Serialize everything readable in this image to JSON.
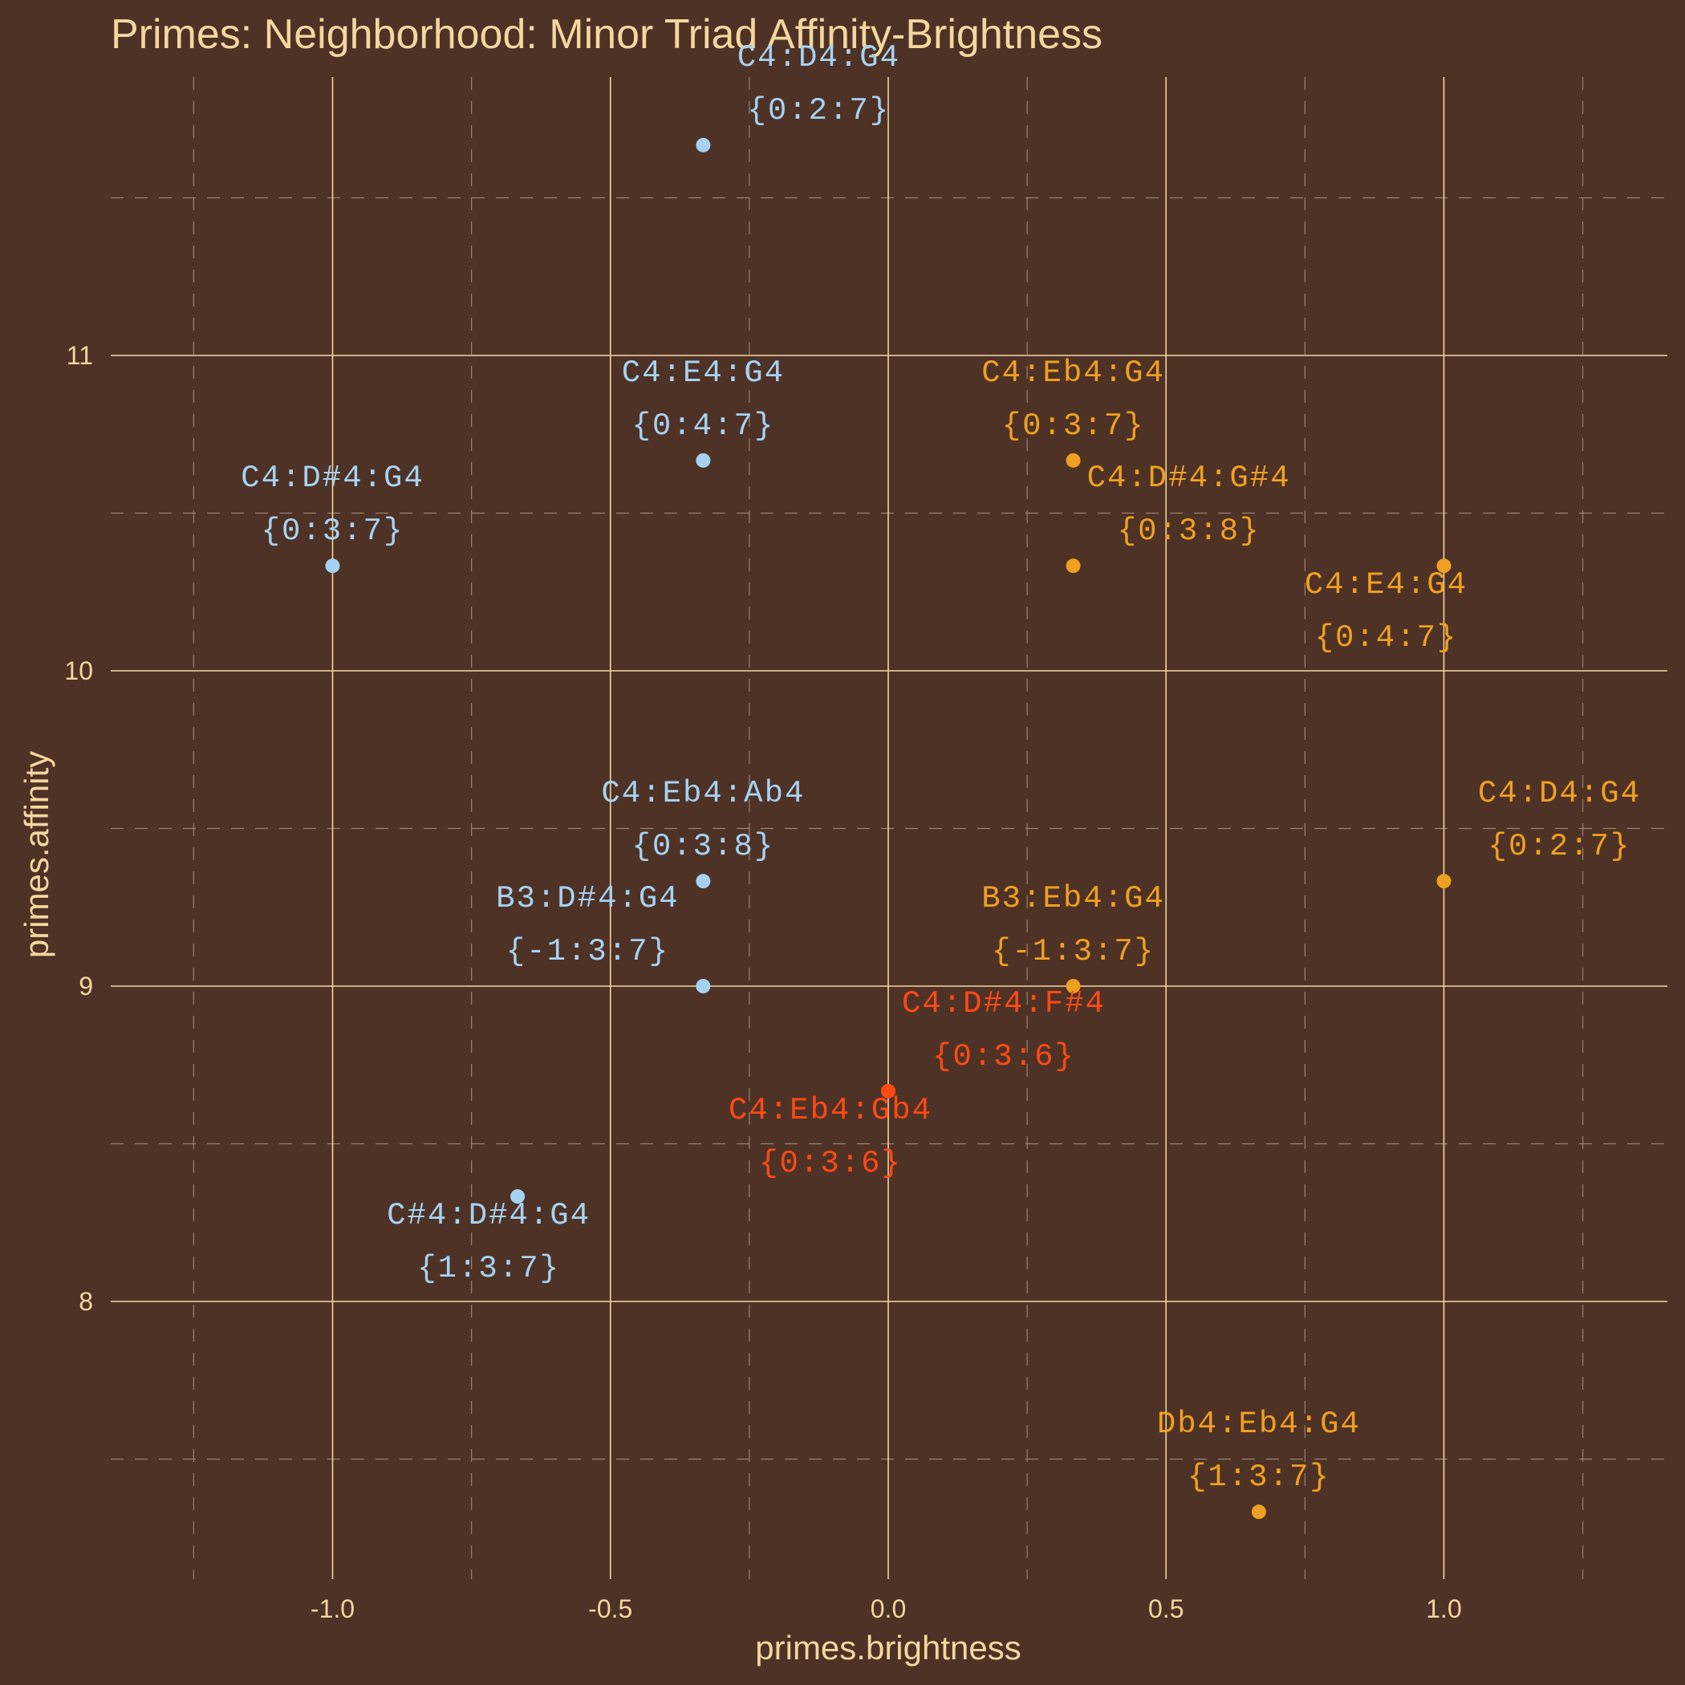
{
  "colors": {
    "background": "#4e3226",
    "text": "#f3d79e",
    "gridMajor": "#f3d79e",
    "gridMinor": "#9a8270",
    "blue": "#a6d2f2",
    "orange": "#f0a020",
    "red": "#ff4a14"
  },
  "chart_data": {
    "type": "scatter",
    "title": "Primes: Neighborhood: Minor Triad Affinity-Brightness",
    "xlabel": "primes.brightness",
    "ylabel": "primes.affinity",
    "xlim": [
      -1.25,
      1.25
    ],
    "ylim": [
      7.2,
      11.9
    ],
    "xticks": [
      -1.0,
      -0.5,
      0.0,
      0.5,
      1.0
    ],
    "xtick_labels": [
      "-1.0",
      "-0.5",
      "0.0",
      "0.5",
      "1.0"
    ],
    "yticks": [
      8,
      9,
      10,
      11
    ],
    "ytick_labels": [
      "8",
      "9",
      "10",
      "11"
    ],
    "xminor": [
      -1.25,
      -0.75,
      -0.25,
      0.25,
      0.75,
      1.25
    ],
    "yminor": [
      7.5,
      8.5,
      9.5,
      10.5,
      11.5
    ],
    "grid": true,
    "legend": "none",
    "points": [
      {
        "x": -0.333,
        "y": 11.667,
        "color": "blue",
        "name": "C4:D4:G4",
        "set": "{0:2:7}",
        "pos": "above-right"
      },
      {
        "x": -0.333,
        "y": 10.667,
        "color": "blue",
        "name": "C4:E4:G4",
        "set": "{0:4:7}",
        "pos": "above"
      },
      {
        "x": -1.0,
        "y": 10.333,
        "color": "blue",
        "name": "C4:D#4:G4",
        "set": "{0:3:7}",
        "pos": "above"
      },
      {
        "x": -0.333,
        "y": 9.333,
        "color": "blue",
        "name": "C4:Eb4:Ab4",
        "set": "{0:3:8}",
        "pos": "above"
      },
      {
        "x": -0.333,
        "y": 9.0,
        "color": "blue",
        "name": "B3:D#4:G4",
        "set": "{-1:3:7}",
        "pos": "above-left"
      },
      {
        "x": -0.667,
        "y": 8.333,
        "color": "blue",
        "name": "C#4:D#4:G4",
        "set": "{1:3:7}",
        "pos": "below"
      },
      {
        "x": 0.333,
        "y": 10.667,
        "color": "orange",
        "name": "C4:Eb4:G4",
        "set": "{0:3:7}",
        "pos": "above"
      },
      {
        "x": 0.333,
        "y": 10.333,
        "color": "orange",
        "name": "C4:D#4:G#4",
        "set": "{0:3:8}",
        "pos": "above-right"
      },
      {
        "x": 1.0,
        "y": 10.333,
        "color": "orange",
        "name": "C4:E4:G4",
        "set": "{0:4:7}",
        "pos": "below-left"
      },
      {
        "x": 1.0,
        "y": 9.333,
        "color": "orange",
        "name": "C4:D4:G4",
        "set": "{0:2:7}",
        "pos": "above-right"
      },
      {
        "x": 0.333,
        "y": 9.0,
        "color": "orange",
        "name": "B3:Eb4:G4",
        "set": "{-1:3:7}",
        "pos": "above"
      },
      {
        "x": 0.667,
        "y": 7.333,
        "color": "orange",
        "name": "Db4:Eb4:G4",
        "set": "{1:3:7}",
        "pos": "above"
      },
      {
        "x": 0.0,
        "y": 8.667,
        "color": "red",
        "name": "C4:D#4:F#4",
        "set": "{0:3:6}",
        "pos": "above-right"
      },
      {
        "x": 0.0,
        "y": 8.667,
        "color": "red",
        "name": "C4:Eb4:Gb4",
        "set": "{0:3:6}",
        "pos": "below-left"
      }
    ]
  }
}
